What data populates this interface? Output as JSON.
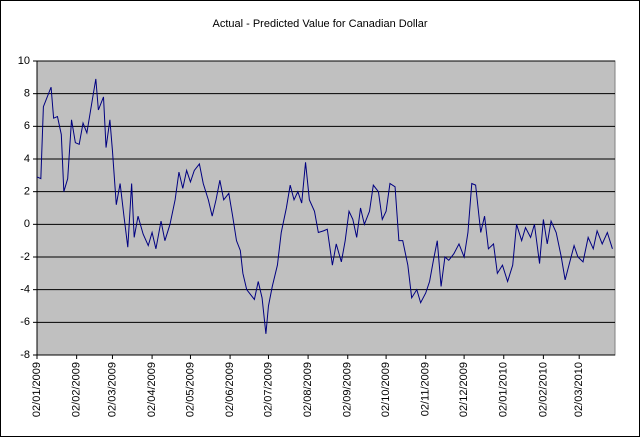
{
  "chart_data": {
    "type": "line",
    "title": "Actual - Predicted Value for Canadian Dollar",
    "x": [
      "02/01/2009",
      "05/01/2009",
      "07/01/2009",
      "10/01/2009",
      "13/01/2009",
      "15/01/2009",
      "18/01/2009",
      "21/01/2009",
      "23/01/2009",
      "26/01/2009",
      "29/01/2009",
      "01/02/2009",
      "04/02/2009",
      "07/02/2009",
      "10/02/2009",
      "14/02/2009",
      "17/02/2009",
      "19/02/2009",
      "23/02/2009",
      "25/02/2009",
      "28/02/2009",
      "02/03/2009",
      "05/03/2009",
      "08/03/2009",
      "11/03/2009",
      "14/03/2009",
      "17/03/2009",
      "19/03/2009",
      "22/03/2009",
      "26/03/2009",
      "30/03/2009",
      "02/04/2009",
      "05/04/2009",
      "09/04/2009",
      "12/04/2009",
      "16/04/2009",
      "20/04/2009",
      "23/04/2009",
      "26/04/2009",
      "29/04/2009",
      "02/05/2009",
      "05/05/2009",
      "09/05/2009",
      "12/05/2009",
      "16/05/2009",
      "19/05/2009",
      "22/05/2009",
      "25/05/2009",
      "28/05/2009",
      "01/06/2009",
      "04/06/2009",
      "07/06/2009",
      "10/06/2009",
      "12/06/2009",
      "15/06/2009",
      "18/06/2009",
      "21/06/2009",
      "24/06/2009",
      "27/06/2009",
      "30/06/2009",
      "02/07/2009",
      "05/07/2009",
      "09/07/2009",
      "12/07/2009",
      "16/07/2009",
      "19/07/2009",
      "22/07/2009",
      "25/07/2009",
      "28/07/2009",
      "31/07/2009",
      "03/08/2009",
      "07/08/2009",
      "10/08/2009",
      "14/08/2009",
      "17/08/2009",
      "21/08/2009",
      "24/08/2009",
      "28/08/2009",
      "31/08/2009",
      "03/09/2009",
      "06/09/2009",
      "09/09/2009",
      "12/09/2009",
      "15/09/2009",
      "19/09/2009",
      "22/09/2009",
      "26/09/2009",
      "29/09/2009",
      "02/10/2009",
      "05/10/2009",
      "09/10/2009",
      "12/10/2009",
      "15/10/2009",
      "19/10/2009",
      "22/10/2009",
      "26/10/2009",
      "29/10/2009",
      "02/11/2009",
      "05/11/2009",
      "08/11/2009",
      "11/11/2009",
      "14/11/2009",
      "17/11/2009",
      "20/11/2009",
      "24/11/2009",
      "28/11/2009",
      "02/12/2009",
      "05/12/2009",
      "08/12/2009",
      "11/12/2009",
      "15/12/2009",
      "18/12/2009",
      "21/12/2009",
      "25/12/2009",
      "28/12/2009",
      "01/01/2010",
      "05/01/2010",
      "09/01/2010",
      "12/01/2010",
      "16/01/2010",
      "19/01/2010",
      "23/01/2010",
      "26/01/2010",
      "30/01/2010",
      "02/02/2010",
      "05/02/2010",
      "08/02/2010",
      "12/02/2010",
      "16/02/2010",
      "19/02/2010",
      "22/02/2010",
      "26/02/2010",
      "01/03/2010",
      "05/03/2010",
      "09/03/2010",
      "13/03/2010",
      "16/03/2010",
      "20/03/2010",
      "24/03/2010",
      "28/03/2010"
    ],
    "series": [
      {
        "name": "Actual - Predicted",
        "color": "#000080",
        "values": [
          2.9,
          2.8,
          7.2,
          7.8,
          8.4,
          6.5,
          6.6,
          5.5,
          2.0,
          2.8,
          6.4,
          5.0,
          4.9,
          6.2,
          5.6,
          7.5,
          8.9,
          7.0,
          7.8,
          4.7,
          6.4,
          4.5,
          1.2,
          2.5,
          0.5,
          -1.4,
          2.5,
          -0.8,
          0.5,
          -0.6,
          -1.3,
          -0.5,
          -1.5,
          0.2,
          -1.0,
          0.0,
          1.5,
          3.2,
          2.2,
          3.3,
          2.6,
          3.3,
          3.7,
          2.5,
          1.5,
          0.5,
          1.5,
          2.7,
          1.5,
          1.9,
          0.5,
          -1.0,
          -1.6,
          -3.0,
          -4.0,
          -4.3,
          -4.6,
          -3.5,
          -4.5,
          -6.7,
          -5.0,
          -3.8,
          -2.5,
          -0.5,
          1.0,
          2.4,
          1.5,
          2.0,
          1.3,
          3.8,
          1.5,
          0.8,
          -0.5,
          -0.4,
          -0.3,
          -2.5,
          -1.2,
          -2.3,
          -1.0,
          0.8,
          0.3,
          -0.8,
          1.0,
          0.0,
          0.8,
          2.4,
          2.0,
          0.3,
          0.8,
          2.5,
          2.3,
          -1.0,
          -1.0,
          -2.5,
          -4.5,
          -4.0,
          -4.8,
          -4.2,
          -3.5,
          -2.2,
          -1.0,
          -3.8,
          -2.0,
          -2.2,
          -1.8,
          -1.2,
          -2.0,
          -0.5,
          2.5,
          2.4,
          -0.5,
          0.5,
          -1.5,
          -1.2,
          -3.0,
          -2.5,
          -3.5,
          -2.5,
          0.0,
          -1.0,
          -0.2,
          -0.8,
          0.0,
          -2.4,
          0.3,
          -1.2,
          0.2,
          -0.5,
          -2.0,
          -3.4,
          -2.5,
          -1.3,
          -2.0,
          -2.3,
          -0.8,
          -1.5,
          -0.4,
          -1.2,
          -0.5,
          -1.5
        ]
      }
    ],
    "xlim": [
      "02/01/2009",
      "30/03/2010"
    ],
    "xticks": [
      "02/01/2009",
      "02/02/2009",
      "02/03/2009",
      "02/04/2009",
      "02/05/2009",
      "02/06/2009",
      "02/07/2009",
      "02/08/2009",
      "02/09/2009",
      "02/10/2009",
      "02/11/2009",
      "02/12/2009",
      "02/01/2010",
      "02/02/2010",
      "02/03/2010"
    ],
    "ylim": [
      -8,
      10
    ],
    "yticks": [
      -8,
      -6,
      -4,
      -2,
      0,
      2,
      4,
      6,
      8,
      10
    ],
    "grid": true
  }
}
